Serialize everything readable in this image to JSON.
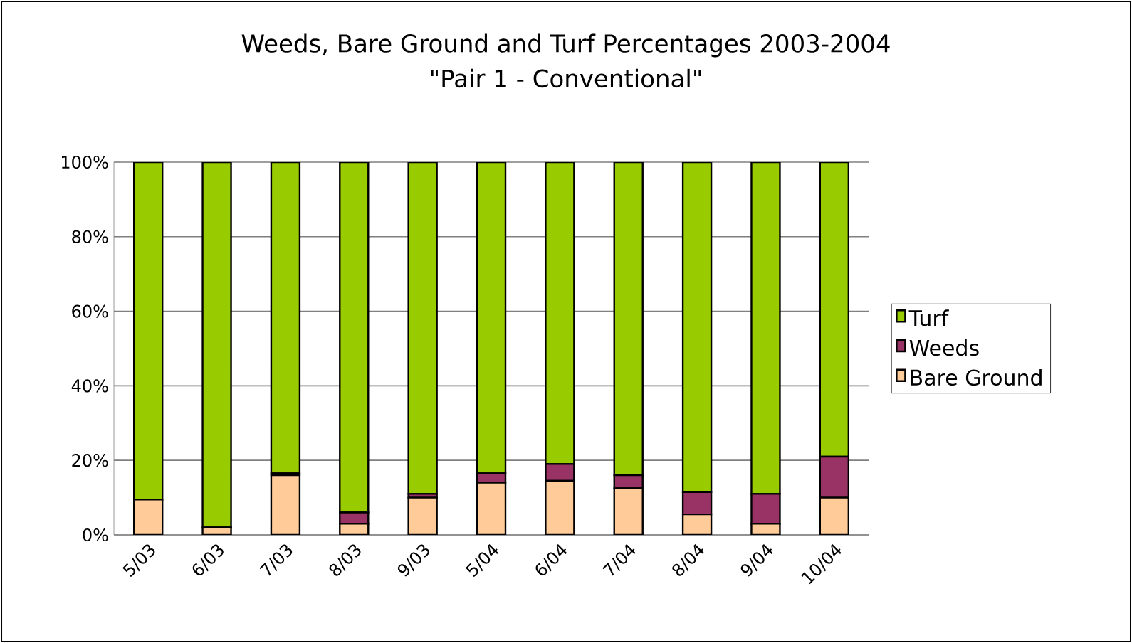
{
  "chart_data": {
    "type": "bar",
    "stacked": true,
    "title": "Weeds, Bare Ground and Turf Percentages 2003-2004",
    "subtitle": "\"Pair 1 - Conventional\"",
    "categories": [
      "5/03",
      "6/03",
      "7/03",
      "8/03",
      "9/03",
      "5/04",
      "6/04",
      "7/04",
      "8/04",
      "9/04",
      "10/04"
    ],
    "series": [
      {
        "name": "Bare Ground",
        "color": "#ffcc99",
        "values": [
          9.5,
          2,
          16,
          3,
          10,
          14,
          14.5,
          12.5,
          5.5,
          3,
          10
        ]
      },
      {
        "name": "Weeds",
        "color": "#993366",
        "values": [
          0,
          null,
          0.5,
          3,
          1,
          2.5,
          4.5,
          3.5,
          6,
          8,
          11
        ]
      },
      {
        "name": "Turf",
        "color": "#99cc00",
        "values": [
          90.5,
          98,
          83.5,
          94,
          89,
          83.5,
          81,
          84,
          88.5,
          89,
          79
        ]
      }
    ],
    "ylim": [
      0,
      100
    ],
    "yticks": [
      {
        "value": 0,
        "label": "0%"
      },
      {
        "value": 20,
        "label": "20%"
      },
      {
        "value": 40,
        "label": "40%"
      },
      {
        "value": 60,
        "label": "60%"
      },
      {
        "value": 80,
        "label": "80%"
      },
      {
        "value": 100,
        "label": "100%"
      }
    ],
    "grid": "y",
    "legend": "right"
  }
}
